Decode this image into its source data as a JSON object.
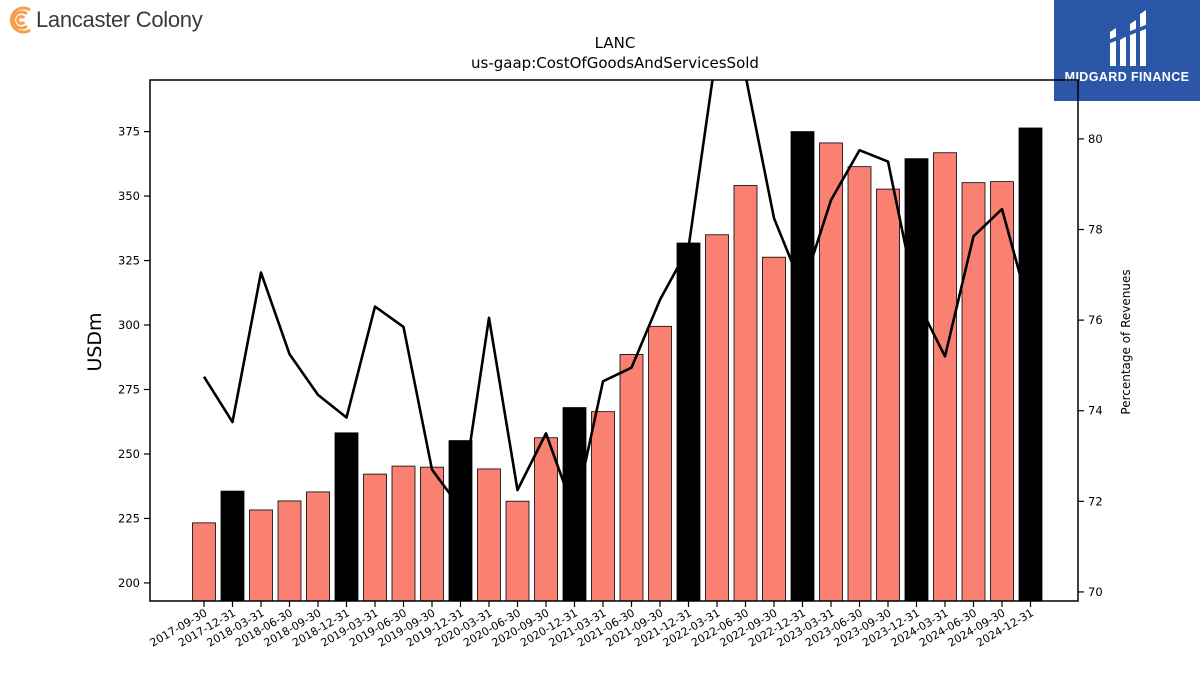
{
  "branding": {
    "company_logo_text": "Lancaster Colony",
    "sponsor_logo_text": "MIDGARD FINANCE",
    "sponsor_color": "#2c57a8",
    "company_logo_color": "#f5a04a"
  },
  "chart_data": {
    "type": "bar",
    "title": "LANC",
    "subtitle": "us-gaap:CostOfGoodsAndServicesSold",
    "ylabel": "USDm",
    "y2label": "Percentage of Revenues",
    "ylim": [
      193,
      395
    ],
    "y2lim": [
      69.8,
      81.3
    ],
    "yticks": [
      200,
      225,
      250,
      275,
      300,
      325,
      350,
      375
    ],
    "y2ticks": [
      70,
      72,
      74,
      76,
      78,
      80
    ],
    "grid": false,
    "categories": [
      "2017-09-30",
      "2017-12-31",
      "2018-03-31",
      "2018-06-30",
      "2018-09-30",
      "2018-12-31",
      "2019-03-31",
      "2019-06-30",
      "2019-09-30",
      "2019-12-31",
      "2020-03-31",
      "2020-06-30",
      "2020-09-30",
      "2020-12-31",
      "2021-03-31",
      "2021-06-30",
      "2021-09-30",
      "2021-12-31",
      "2022-03-31",
      "2022-06-30",
      "2022-09-30",
      "2022-12-31",
      "2023-03-31",
      "2023-06-30",
      "2023-09-30",
      "2023-12-31",
      "2024-03-31",
      "2024-06-30",
      "2024-09-30",
      "2024-12-31"
    ],
    "series": [
      {
        "kind": "bar",
        "values": [
          223.3,
          235.6,
          228.3,
          231.8,
          235.3,
          258.2,
          242.2,
          245.3,
          244.9,
          255.2,
          244.2,
          231.7,
          256.3,
          268.0,
          266.4,
          288.6,
          299.5,
          331.8,
          335.0,
          354.1,
          326.3,
          375.0,
          370.6,
          361.4,
          352.7,
          364.5,
          366.8,
          355.2,
          355.6,
          376.4
        ],
        "highlight": [
          false,
          true,
          false,
          false,
          false,
          true,
          false,
          false,
          false,
          true,
          false,
          false,
          false,
          true,
          false,
          false,
          false,
          true,
          false,
          false,
          false,
          true,
          false,
          false,
          false,
          true,
          false,
          false,
          false,
          true
        ],
        "color": "#fa8072",
        "highlight_color": "#000000"
      },
      {
        "kind": "line",
        "axis": "secondary",
        "values": [
          74.75,
          73.75,
          77.05,
          75.25,
          74.35,
          73.85,
          76.3,
          75.85,
          72.7,
          71.85,
          76.05,
          72.25,
          73.5,
          71.75,
          74.65,
          74.95,
          76.45,
          77.6,
          82.0,
          81.4,
          78.25,
          76.7,
          78.65,
          79.75,
          79.5,
          76.45,
          75.2,
          77.85,
          78.45,
          76.15
        ],
        "color": "#000000"
      }
    ]
  }
}
